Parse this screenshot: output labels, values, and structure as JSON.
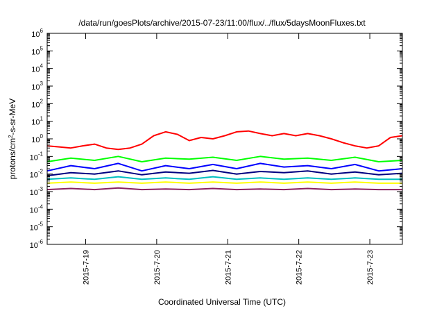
{
  "chart_data": {
    "type": "line",
    "title": "/data/run/goesPlots/archive/2015-07-23/11:00/flux/../flux/5daysMoonFluxes.txt",
    "xlabel": "Coordinated Universal Time (UTC)",
    "ylabel_prefix": "protons/cm",
    "ylabel_sup": "2",
    "ylabel_suffix": "-s-sr-MeV",
    "yscale": "log",
    "ylim": [
      1e-06,
      1000000.0
    ],
    "y_ticks": [
      {
        "base": "10",
        "exp": "-6",
        "value": 1e-06
      },
      {
        "base": "10",
        "exp": "-5",
        "value": 1e-05
      },
      {
        "base": "10",
        "exp": "-4",
        "value": 0.0001
      },
      {
        "base": "10",
        "exp": "-3",
        "value": 0.001
      },
      {
        "base": "10",
        "exp": "-2",
        "value": 0.01
      },
      {
        "base": "10",
        "exp": "-1",
        "value": 0.1
      },
      {
        "base": "10",
        "exp": "0",
        "value": 1
      },
      {
        "base": "10",
        "exp": "1",
        "value": 10
      },
      {
        "base": "10",
        "exp": "2",
        "value": 100
      },
      {
        "base": "10",
        "exp": "3",
        "value": 1000
      },
      {
        "base": "10",
        "exp": "4",
        "value": 10000
      },
      {
        "base": "10",
        "exp": "5",
        "value": 100000
      },
      {
        "base": "10",
        "exp": "6",
        "value": 1000000
      }
    ],
    "xlim": [
      "2015-07-18T11:00",
      "2015-07-23T11:00"
    ],
    "x_ticks": [
      {
        "label": "2015-7-19",
        "value": "2015-07-19T00:00"
      },
      {
        "label": "2015-7-20",
        "value": "2015-07-20T00:00"
      },
      {
        "label": "2015-7-21",
        "value": "2015-07-21T00:00"
      },
      {
        "label": "2015-7-22",
        "value": "2015-07-22T00:00"
      },
      {
        "label": "2015-7-23",
        "value": "2015-07-23T00:00"
      }
    ],
    "grid": false,
    "series": [
      {
        "color": "#ff0000",
        "x": [
          "2015-07-18T11:00",
          "2015-07-18T15:00",
          "2015-07-18T19:00",
          "2015-07-18T23:00",
          "2015-07-19T03:00",
          "2015-07-19T07:00",
          "2015-07-19T11:00",
          "2015-07-19T15:00",
          "2015-07-19T19:00",
          "2015-07-19T23:00",
          "2015-07-20T03:00",
          "2015-07-20T07:00",
          "2015-07-20T11:00",
          "2015-07-20T15:00",
          "2015-07-20T19:00",
          "2015-07-20T23:00",
          "2015-07-21T03:00",
          "2015-07-21T07:00",
          "2015-07-21T11:00",
          "2015-07-21T15:00",
          "2015-07-21T19:00",
          "2015-07-21T23:00",
          "2015-07-22T03:00",
          "2015-07-22T07:00",
          "2015-07-22T11:00",
          "2015-07-22T15:00",
          "2015-07-22T19:00",
          "2015-07-22T23:00",
          "2015-07-23T03:00",
          "2015-07-23T07:00",
          "2015-07-23T11:00"
        ],
        "values": [
          0.4,
          0.35,
          0.3,
          0.4,
          0.5,
          0.3,
          0.25,
          0.3,
          0.5,
          1.5,
          2.5,
          1.8,
          0.8,
          1.2,
          1.0,
          1.5,
          2.5,
          2.8,
          2.0,
          1.5,
          2.0,
          1.5,
          2.0,
          1.5,
          1.0,
          0.6,
          0.4,
          0.3,
          0.4,
          1.2,
          1.5
        ]
      },
      {
        "color": "#00ff00",
        "x": [
          "2015-07-18T11:00",
          "2015-07-18T19:00",
          "2015-07-19T03:00",
          "2015-07-19T11:00",
          "2015-07-19T19:00",
          "2015-07-20T03:00",
          "2015-07-20T11:00",
          "2015-07-20T19:00",
          "2015-07-21T03:00",
          "2015-07-21T11:00",
          "2015-07-21T19:00",
          "2015-07-22T03:00",
          "2015-07-22T11:00",
          "2015-07-22T19:00",
          "2015-07-23T03:00",
          "2015-07-23T11:00"
        ],
        "values": [
          0.05,
          0.08,
          0.06,
          0.1,
          0.05,
          0.08,
          0.07,
          0.09,
          0.06,
          0.1,
          0.07,
          0.08,
          0.06,
          0.09,
          0.05,
          0.06
        ]
      },
      {
        "color": "#0000ff",
        "x": [
          "2015-07-18T11:00",
          "2015-07-18T19:00",
          "2015-07-19T03:00",
          "2015-07-19T11:00",
          "2015-07-19T19:00",
          "2015-07-20T03:00",
          "2015-07-20T11:00",
          "2015-07-20T19:00",
          "2015-07-21T03:00",
          "2015-07-21T11:00",
          "2015-07-21T19:00",
          "2015-07-22T03:00",
          "2015-07-22T11:00",
          "2015-07-22T19:00",
          "2015-07-23T03:00",
          "2015-07-23T11:00"
        ],
        "values": [
          0.015,
          0.03,
          0.02,
          0.04,
          0.015,
          0.03,
          0.02,
          0.035,
          0.02,
          0.04,
          0.025,
          0.03,
          0.02,
          0.035,
          0.015,
          0.02
        ]
      },
      {
        "color": "#000080",
        "x": [
          "2015-07-18T11:00",
          "2015-07-18T19:00",
          "2015-07-19T03:00",
          "2015-07-19T11:00",
          "2015-07-19T19:00",
          "2015-07-20T03:00",
          "2015-07-20T11:00",
          "2015-07-20T19:00",
          "2015-07-21T03:00",
          "2015-07-21T11:00",
          "2015-07-21T19:00",
          "2015-07-22T03:00",
          "2015-07-22T11:00",
          "2015-07-22T19:00",
          "2015-07-23T03:00",
          "2015-07-23T11:00"
        ],
        "values": [
          0.008,
          0.012,
          0.01,
          0.015,
          0.009,
          0.013,
          0.011,
          0.016,
          0.01,
          0.014,
          0.012,
          0.015,
          0.01,
          0.013,
          0.009,
          0.011
        ]
      },
      {
        "color": "#00c0c0",
        "x": [
          "2015-07-18T11:00",
          "2015-07-18T19:00",
          "2015-07-19T03:00",
          "2015-07-19T11:00",
          "2015-07-19T19:00",
          "2015-07-20T03:00",
          "2015-07-20T11:00",
          "2015-07-20T19:00",
          "2015-07-21T03:00",
          "2015-07-21T11:00",
          "2015-07-21T19:00",
          "2015-07-22T03:00",
          "2015-07-22T11:00",
          "2015-07-22T19:00",
          "2015-07-23T03:00",
          "2015-07-23T11:00"
        ],
        "values": [
          0.005,
          0.006,
          0.005,
          0.007,
          0.005,
          0.006,
          0.005,
          0.007,
          0.005,
          0.006,
          0.005,
          0.006,
          0.005,
          0.006,
          0.005,
          0.005
        ]
      },
      {
        "color": "#ffff00",
        "x": [
          "2015-07-18T11:00",
          "2015-07-18T19:00",
          "2015-07-19T03:00",
          "2015-07-19T11:00",
          "2015-07-19T19:00",
          "2015-07-20T03:00",
          "2015-07-20T11:00",
          "2015-07-20T19:00",
          "2015-07-21T03:00",
          "2015-07-21T11:00",
          "2015-07-21T19:00",
          "2015-07-22T03:00",
          "2015-07-22T11:00",
          "2015-07-22T19:00",
          "2015-07-23T03:00",
          "2015-07-23T11:00"
        ],
        "values": [
          0.003,
          0.0035,
          0.003,
          0.0035,
          0.003,
          0.0035,
          0.003,
          0.0035,
          0.003,
          0.0035,
          0.003,
          0.0035,
          0.003,
          0.0035,
          0.003,
          0.003
        ]
      },
      {
        "color": "#8b2060",
        "x": [
          "2015-07-18T11:00",
          "2015-07-18T19:00",
          "2015-07-19T03:00",
          "2015-07-19T11:00",
          "2015-07-19T19:00",
          "2015-07-20T03:00",
          "2015-07-20T11:00",
          "2015-07-20T19:00",
          "2015-07-21T03:00",
          "2015-07-21T11:00",
          "2015-07-21T19:00",
          "2015-07-22T03:00",
          "2015-07-22T11:00",
          "2015-07-22T19:00",
          "2015-07-23T03:00",
          "2015-07-23T11:00"
        ],
        "values": [
          0.0013,
          0.0015,
          0.0013,
          0.0016,
          0.0013,
          0.0014,
          0.0013,
          0.0015,
          0.0013,
          0.0014,
          0.0013,
          0.0015,
          0.0013,
          0.0014,
          0.0013,
          0.0013
        ]
      }
    ]
  }
}
